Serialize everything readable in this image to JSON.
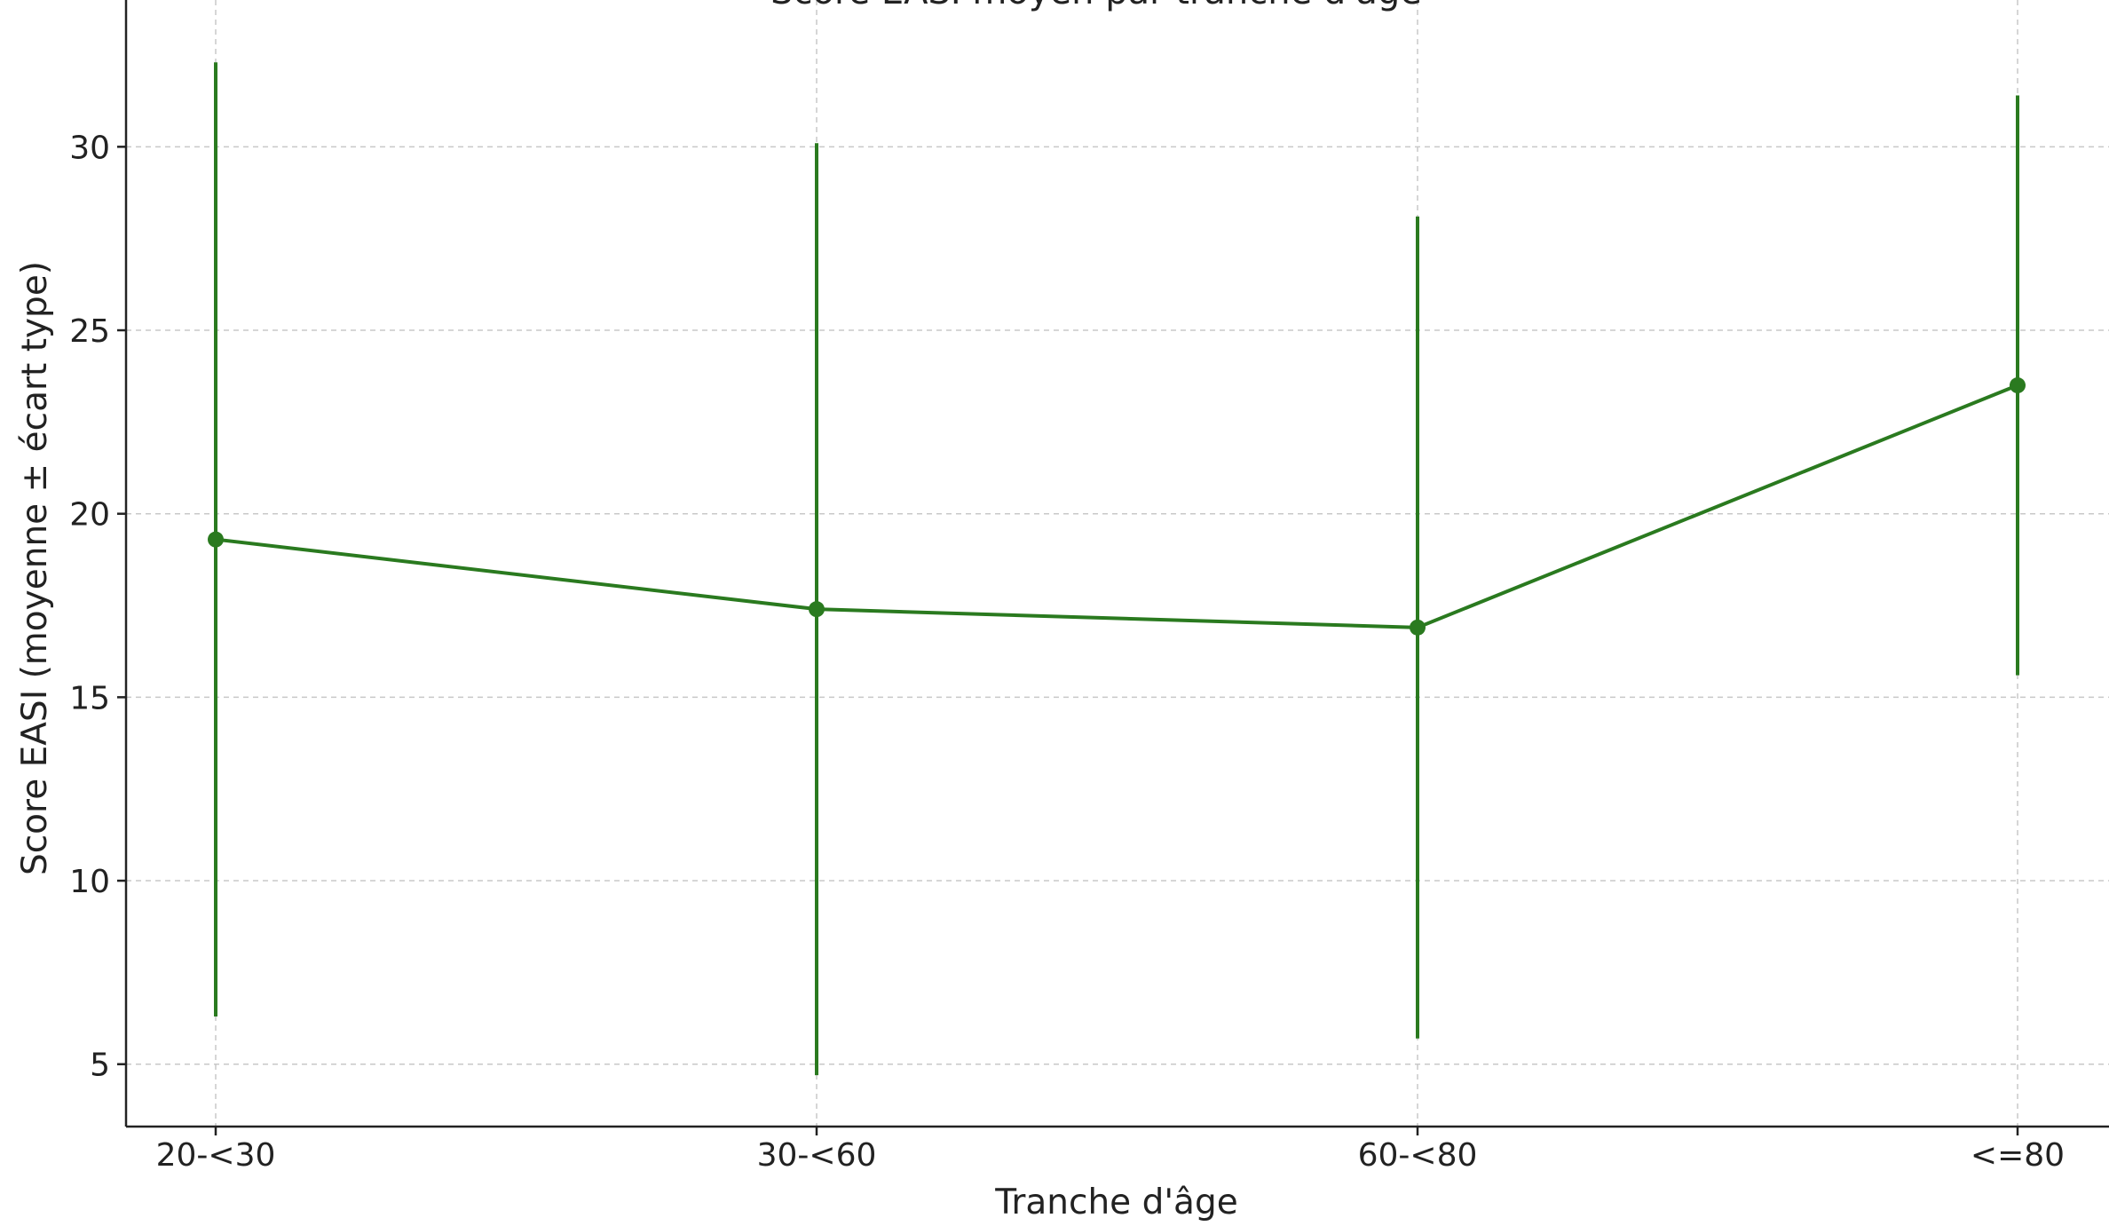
{
  "chart_data": {
    "type": "line",
    "title": "Score EASI moyen par tranche d'âge",
    "xlabel": "Tranche d'âge",
    "ylabel": "Score EASI (moyenne ± écart type)",
    "categories": [
      "20-<30",
      "30-<60",
      "60-<80",
      "<=80"
    ],
    "series": [
      {
        "values": [
          19.3,
          17.4,
          16.9,
          23.5
        ],
        "error_low": [
          6.3,
          4.7,
          5.7,
          15.6
        ],
        "error_high": [
          32.3,
          30.1,
          28.1,
          31.4
        ],
        "color": "#2a7a1f"
      }
    ],
    "ylim": [
      3.3,
      34.0
    ],
    "yticks": [
      5,
      10,
      15,
      20,
      25,
      30
    ],
    "grid": true,
    "legend": "none"
  }
}
